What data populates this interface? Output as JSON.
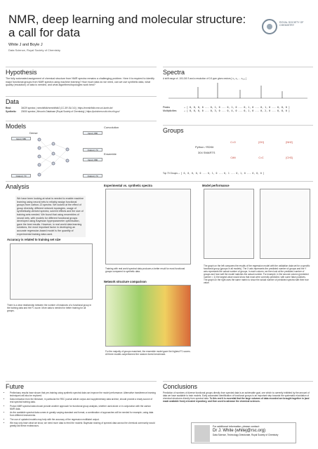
{
  "header": {
    "title": "NMR, deep learning and molecular structure: a call for data",
    "authors": "White J and Boyle J",
    "affiliation": "Data Science, Royal Society of Chemistry",
    "logo": "ROYAL SOCIETY OF CHEMISTRY"
  },
  "hypothesis": {
    "title": "Hypothesis",
    "text": "The fully automated assignment of chemical structure from NMR spectra remains a challenging problem. Here it is required to identify major functional groups from NMR spectra using machine learning? How much data do we need, can we use synthetic data, what quality (resolution) of data is needed, and what algorithms/topologies work best?"
  },
  "spectra": {
    "title": "Spectra",
    "text": "A shift range of -100-240 δ and a resolution of 0.5 ppm gives vectors [ x₁, x₂, ... x₆₈₀ ]",
    "rows": [
      {
        "label": "Peaks",
        "vector": "→ [ 0, 0, 0, 0 ... 0, 1, 0 ... 0, 1, 0 ... 0, 1, 0 ... 0, 1, 0 ... 0, 0, 0 ]"
      },
      {
        "label": "Multiplicities",
        "vector": "→ [ 0, 0, 0, 0 ... 0, 3, 0 ... 0, 4, 0 ... 0, 1, 0 ... 0, 2, 0 ... 0, 0, 0 ]"
      }
    ]
  },
  "data": {
    "title": "Data",
    "rows": [
      {
        "label": "Real:",
        "text": "34029 spectra | nmrshiftdb/nmrshiftdb2 (CC-BY-SA 3.0) | https://nmrshiftdb.nmr.uni-koeln.de/"
      },
      {
        "label": "Synthetic:",
        "text": "20000 spectra | Mnova's Database (Royal Society of Chemistry) | https://pubchem.ncbi.nlm.nih.gov/"
      }
    ]
  },
  "models": {
    "title": "Models",
    "dense": "Dense",
    "convolution": "Convolution",
    "ensemble": "Ensemble",
    "input": "Input | 680",
    "output": "Output | 70"
  },
  "groups": {
    "title": "Groups",
    "tool": "Python / RDKit",
    "smarts": "304 SMARTS",
    "top_label": "Top 70 Groups",
    "vector": "→ [ 0, 0, 0, 0, 0 ... 0, 1, 0 ... 0, 1 ... 0, 1, 0 ... 0, 0, 0 ]",
    "names": [
      "C=O",
      "[OH]",
      "[NH2]",
      "C#N",
      "C=C",
      "[CH3]"
    ]
  },
  "analysis": {
    "title": "Analysis",
    "text": "We have been looking at what is needed to enable machine learning using neural nets to reliably assign functional groups from carbon-13 spectra. We looked at the effect of group diversity, different network topologies, usage of synthetically-derived spectra, solvent effects and the size of training sets needed. We found that using ensembles of neural nets, with models for different functional groups developed using Bayesian hyperparameter optimisation, gave the best results. However, in real world data learning solutions, the most important factor in developing an accurate regression-based model is the quantity of experimental training data used.",
    "charts": {
      "accuracy": "Accuracy is related to training set size",
      "exp_vs_syn": "Experimental vs. synthetic spectra",
      "network": "Network structure comparison",
      "performance": "Model performance"
    },
    "notes": {
      "accuracy": "There is a clear relationship between the number of instances of a functional group in the training data and the F1 score. More data is needed for better training for all groups.",
      "exp_vs_syn": "Training with real world spectral data produces a better result for most functional groups compared to synthetic data.",
      "network": "For the majority of groups examined, the ensemble model gave the highest F1 scores. All three models outperformed the random forest benchmark.",
      "performance": "The graph on the left compares the results of the regression model with the validation data set for a specific functional group (groups in all models). The X axis represents the predicted number of groups and the Y axis represents the actual number of groups. In each column, we then look at the predicted number of groups and how well the model matches the actual number. For example, in the second column (predicted number = 1) the largest value would show that most were correctly predicted, with some false positives. The graph on the right uses the same matrix to show the actual number of predicted spectra with their true value."
    }
  },
  "future": {
    "title": "Future",
    "bullets": [
      "Preliminary results have shown that pre-training using synthetic spectral data can improve the model performance. Alternative transference learning techniques will also be explored.",
      "Data extraction from the literature, in particular the RSC journal article corpus and supplementary data archive, should provide a ready source of real spectral training data.",
      "Proton NMR spectral data should provide another approach for functional group analysis, whether used alone or in conjunction with the carbon NMR data.",
      "As the available spectral data comes in greatly varying standard and format, a combination of approaches will be needed for example, using data from different instruments.",
      "The use of updated models may help with the accuracy of the regression multilabel output.",
      "We may only learn what we know, we need more data to feed the models: Bayesian sharing of spectral data across the chemical community would greatly aid these endeavours."
    ]
  },
  "conclusions": {
    "title": "Conclusions",
    "text": "Prediction of numbers of diverse functional groups directly from spectral data is an achievable goal, one which is currently inhibited by the amount of data we have available to train models. Early automated identification of functional groups is an important step towards the systematic elucidation of chemical structures directly from spectral data.",
    "emphasis": "To this end it is essential that the large volumes of data recorded are brought together in (and made available from) a trusted repository, and then used to advance the chemical sciences."
  },
  "contact": {
    "intro": "For additional information, please contact:",
    "name": "Dr J. White (whitej@rsc.org)",
    "dept": "Data Science, Technology Directorate, Royal Society of Chemistry"
  }
}
